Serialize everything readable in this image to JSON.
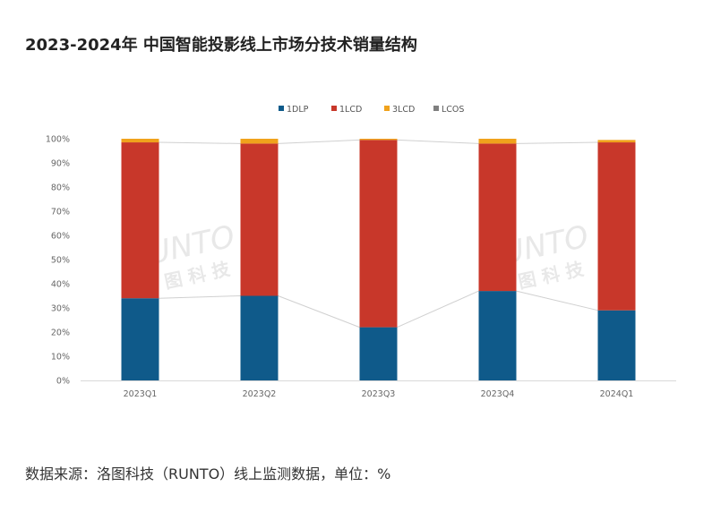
{
  "page": {
    "title": "2023-2024年 中国智能投影线上市场分技术销量结构",
    "source_note": "数据来源：洛图科技（RUNTO）线上监测数据，单位：%"
  },
  "watermark": {
    "brand": "RUNTO",
    "brand_cn": "洛 图 科 技"
  },
  "chart_data": {
    "type": "bar",
    "stacked": true,
    "percent": true,
    "categories": [
      "2023Q1",
      "2023Q2",
      "2023Q3",
      "2023Q4",
      "2024Q1"
    ],
    "series": [
      {
        "name": "1DLP",
        "color": "#0f5a8a",
        "values": [
          34,
          35,
          22,
          37,
          29
        ]
      },
      {
        "name": "1LCD",
        "color": "#c8372a",
        "values": [
          64.5,
          63,
          77.5,
          61,
          69.5
        ]
      },
      {
        "name": "3LCD",
        "color": "#f0a21c",
        "values": [
          1.5,
          2,
          0.5,
          2,
          1
        ]
      },
      {
        "name": "LCOS",
        "color": "#7f7f7f",
        "values": [
          0,
          0,
          0,
          0,
          0
        ]
      }
    ],
    "ylim": [
      0,
      100
    ],
    "yticks": [
      "0%",
      "10%",
      "20%",
      "30%",
      "40%",
      "50%",
      "60%",
      "70%",
      "80%",
      "90%",
      "100%"
    ],
    "grid": false,
    "legend_position": "top-center",
    "connector_lines": true
  }
}
